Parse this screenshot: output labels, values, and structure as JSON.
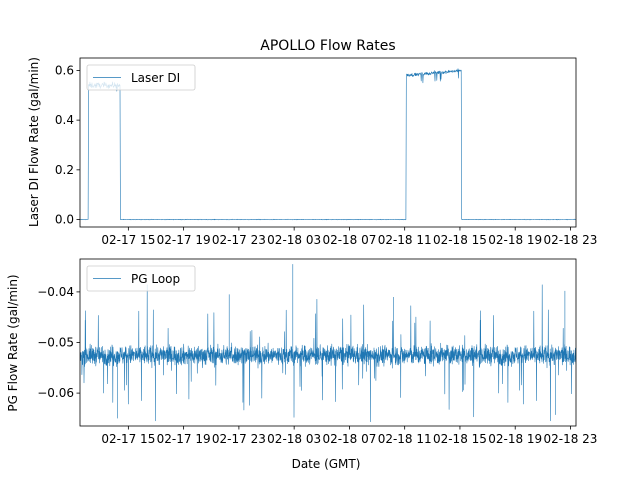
{
  "chart_data": {
    "type": "line",
    "title": "APOLLO Flow Rates",
    "x_axis": {
      "label": "Date (GMT)",
      "tick_labels": [
        "02-17 15",
        "02-17 19",
        "02-17 23",
        "02-18 03",
        "02-18 07",
        "02-18 11",
        "02-18 15",
        "02-18 19",
        "02-18 23"
      ],
      "range_hours_from_02_17_00": [
        11.5,
        47.4
      ],
      "tick_hours_from_02_17_00": [
        15,
        19,
        23,
        27,
        31,
        35,
        39,
        43,
        47
      ]
    },
    "subplots": [
      {
        "name": "laser-di",
        "ylabel": "Laser DI Flow Rate (gal/min)",
        "ylim": [
          -0.03,
          0.65
        ],
        "yticks": [
          0.0,
          0.2,
          0.4,
          0.6
        ],
        "ytick_labels": [
          "0.0",
          "0.2",
          "0.4",
          "0.6"
        ],
        "legend": "Laser DI",
        "legend_position": "upper-left",
        "series": [
          {
            "name": "Laser DI",
            "color": "#1f77b4",
            "segments": [
              {
                "start": 11.5,
                "end": 12.1,
                "level": 0.0,
                "noise": 0.002
              },
              {
                "start": 12.1,
                "end": 14.4,
                "level": 0.54,
                "noise": 0.02
              },
              {
                "start": 14.4,
                "end": 35.1,
                "level": 0.0,
                "noise": 0.002
              },
              {
                "start": 35.1,
                "end": 39.1,
                "level": 0.58,
                "noise": 0.012
              },
              {
                "start": 39.1,
                "end": 47.4,
                "level": 0.0,
                "noise": 0.002
              }
            ]
          }
        ]
      },
      {
        "name": "pg-loop",
        "ylabel": "PG Flow Rate (gal/min)",
        "ylim": [
          -0.0665,
          -0.0335
        ],
        "yticks": [
          -0.06,
          -0.05,
          -0.04
        ],
        "ytick_labels": [
          "−0.06",
          "−0.05",
          "−0.04"
        ],
        "legend": "PG Loop",
        "legend_position": "upper-left",
        "series": [
          {
            "name": "PG Loop",
            "color": "#1f77b4",
            "mean": -0.0525,
            "band": 0.0015,
            "spike_max": -0.0345,
            "spike_min": -0.065
          }
        ]
      }
    ]
  }
}
